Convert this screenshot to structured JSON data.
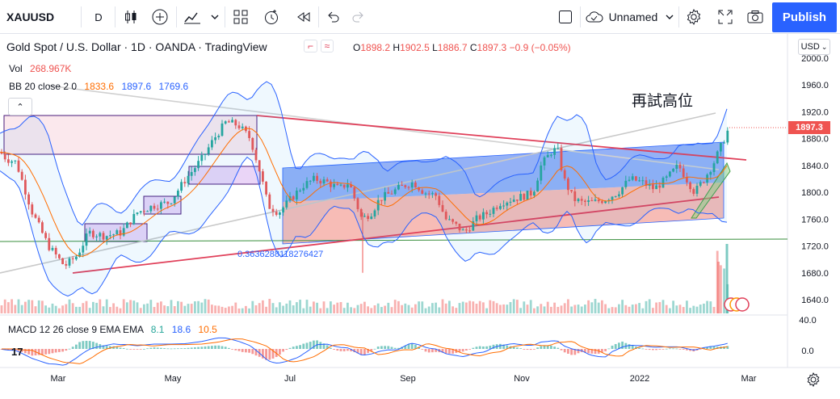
{
  "toolbar": {
    "symbol": "XAUUSD",
    "interval": "D",
    "layout_name": "Unnamed",
    "publish_label": "Publish"
  },
  "header": {
    "title": "Gold Spot / U.S. Dollar · 1D · OANDA · TradingView",
    "ohlc": {
      "o_label": "O",
      "o": "1898.2",
      "h_label": "H",
      "h": "1902.5",
      "l_label": "L",
      "l": "1886.7",
      "c_label": "C",
      "c": "1897.3",
      "change": "−0.9 (−0.05%)"
    },
    "vol_label": "Vol",
    "vol_value": "268.967K",
    "bb_label": "BB 20 close 2 0",
    "bb_basis": "1833.6",
    "bb_upper": "1897.6",
    "bb_lower": "1769.6"
  },
  "annotation": {
    "text": "再試高位",
    "fib_value": "0.3636288118276427"
  },
  "price_axis": {
    "currency": "USD",
    "ticks": [
      "2000.0",
      "1960.0",
      "1920.0",
      "1880.0",
      "1840.0",
      "1800.0",
      "1760.0",
      "1720.0",
      "1680.0",
      "1640.0"
    ],
    "last_price": "1897.3"
  },
  "macd": {
    "label": "MACD 12 26 close 9 EMA EMA",
    "hist": "8.1",
    "macd": "18.6",
    "signal": "10.5",
    "ticks": [
      "40.0",
      "0.0"
    ]
  },
  "time_axis": {
    "labels": [
      "Mar",
      "May",
      "Jul",
      "Sep",
      "Nov",
      "2022",
      "Mar"
    ]
  },
  "colors": {
    "up": "#26a69a",
    "down": "#ef5350",
    "accent": "#2962ff",
    "bb_basis": "#ff6d00",
    "bb_band": "#2962ff",
    "macd_line": "#2962ff",
    "signal_line": "#ff6d00",
    "trendline": "#e0405a"
  },
  "chart_data": {
    "type": "candlestick",
    "symbol": "XAUUSD",
    "timeframe": "1D",
    "x_labels": [
      "Mar",
      "May",
      "Jul",
      "Sep",
      "Nov",
      "2022",
      "Mar"
    ],
    "ylim": [
      1630,
      2010
    ],
    "approx_close_path": [
      {
        "x": "Feb",
        "y": 1860
      },
      {
        "x": "early Mar",
        "y": 1720
      },
      {
        "x": "end Mar",
        "y": 1690
      },
      {
        "x": "Apr",
        "y": 1760
      },
      {
        "x": "May",
        "y": 1840
      },
      {
        "x": "early Jun",
        "y": 1890
      },
      {
        "x": "mid Jun",
        "y": 1780
      },
      {
        "x": "Jul",
        "y": 1800
      },
      {
        "x": "Aug",
        "y": 1740
      },
      {
        "x": "Sep",
        "y": 1790
      },
      {
        "x": "end Sep",
        "y": 1750
      },
      {
        "x": "Nov",
        "y": 1860
      },
      {
        "x": "end Nov",
        "y": 1790
      },
      {
        "x": "Dec",
        "y": 1790
      },
      {
        "x": "2022",
        "y": 1820
      },
      {
        "x": "Feb",
        "y": 1860
      },
      {
        "x": "latest",
        "y": 1897.3
      }
    ],
    "last": {
      "open": 1898.2,
      "high": 1902.5,
      "low": 1886.7,
      "close": 1897.3,
      "change": -0.9,
      "change_pct": -0.05
    },
    "bollinger": {
      "length": 20,
      "basis": 1833.6,
      "upper": 1897.6,
      "lower": 1769.6
    },
    "macd": {
      "fast": 12,
      "slow": 26,
      "signal": 9,
      "hist": 8.1,
      "macd": 18.6,
      "signal_value": 10.5
    }
  }
}
